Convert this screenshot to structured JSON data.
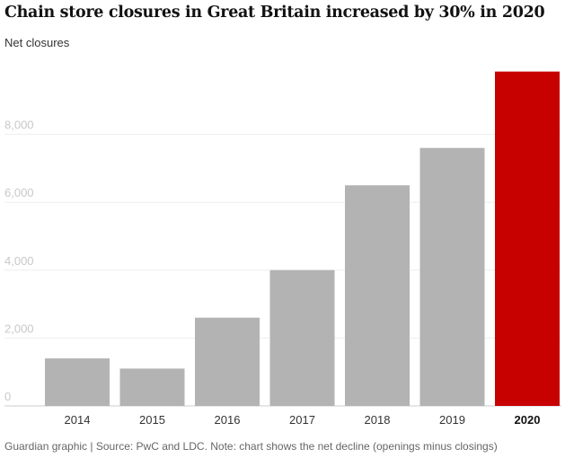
{
  "chart_data": {
    "type": "bar",
    "title": "Chain store closures in Great Britain increased by 30% in 2020",
    "subtitle": "Net closures",
    "categories": [
      "2014",
      "2015",
      "2016",
      "2017",
      "2018",
      "2019",
      "2020"
    ],
    "values": [
      1400,
      1100,
      2600,
      4000,
      6500,
      7600,
      9850
    ],
    "highlight_category": "2020",
    "ylim": [
      0,
      10000
    ],
    "yticks": [
      0,
      2000,
      4000,
      6000,
      8000
    ],
    "ytick_labels": [
      "0",
      "2,000",
      "4,000",
      "6,000",
      "8,000"
    ],
    "grid": true,
    "source": "Guardian graphic | Source: PwC and LDC. Note: chart shows the net decline (openings minus closings)"
  },
  "colors": {
    "bar": "#b3b3b4",
    "highlight": "#c70000",
    "grid": "#ededed",
    "baseline": "#cccccc"
  }
}
